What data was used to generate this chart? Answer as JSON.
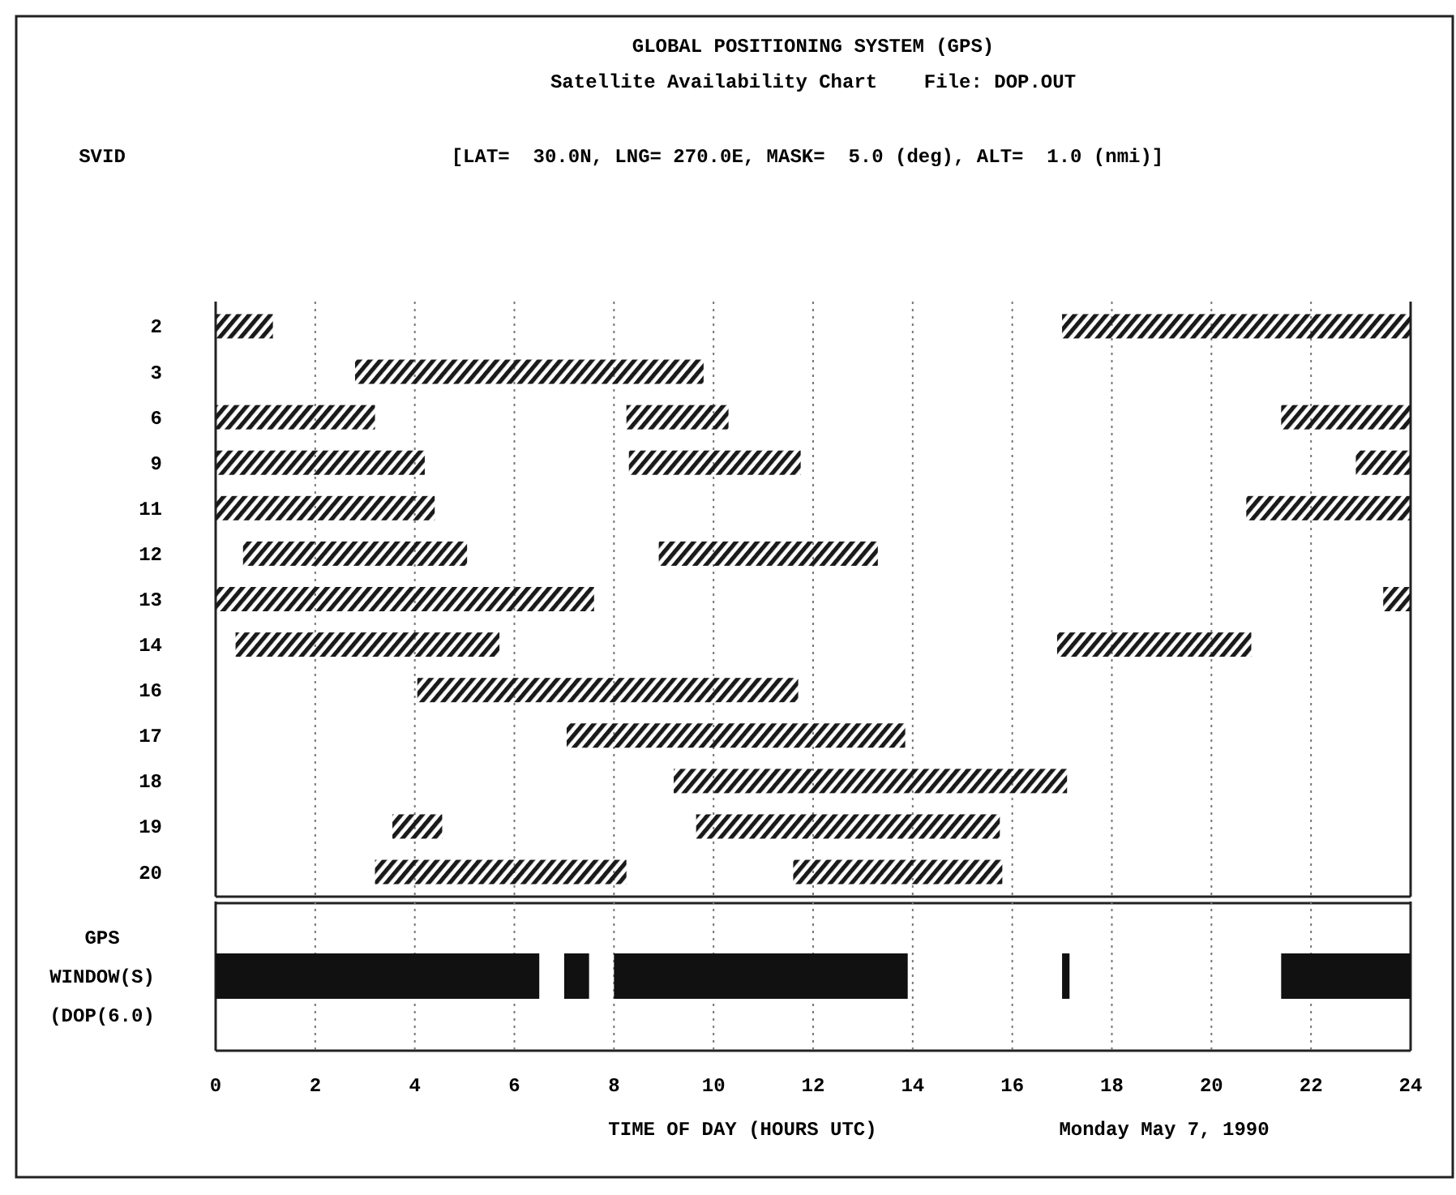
{
  "chart_data": [
    {
      "type": "bar",
      "orientation": "horizontal",
      "title": "GLOBAL POSITIONING SYSTEM (GPS)",
      "subtitle": "Satellite Availability Chart    File: DOP.OUT",
      "ylabel": "SVID",
      "annotations": [
        "[LAT=  30.0N, LNG= 270.0E, MASK=  5.0 (deg), ALT=  1.0 (nmi)]"
      ],
      "categories": [
        "2",
        "3",
        "6",
        "9",
        "11",
        "12",
        "13",
        "14",
        "16",
        "17",
        "18",
        "19",
        "20"
      ],
      "series": [
        {
          "color": "#1a1a1a",
          "base": [
            0,
            2.8,
            0,
            0,
            0,
            0.55,
            0,
            0.4,
            4.05,
            7.05,
            9.2,
            3.55,
            3.2
          ],
          "values": [
            1.15,
            7.0,
            3.2,
            4.2,
            4.4,
            4.5,
            7.6,
            5.3,
            7.65,
            6.8,
            7.9,
            1.0,
            5.05
          ]
        },
        {
          "color": "#1a1a1a",
          "base": [
            17.0,
            null,
            8.25,
            8.3,
            20.7,
            8.9,
            23.45,
            16.9,
            null,
            null,
            null,
            9.65,
            11.6
          ],
          "values": [
            7.0,
            null,
            2.05,
            3.45,
            3.3,
            4.4,
            0.55,
            3.9,
            null,
            null,
            null,
            6.1,
            4.2
          ]
        },
        {
          "color": "#1a1a1a",
          "base": [
            null,
            null,
            21.4,
            22.9,
            null,
            null,
            null,
            null,
            null,
            null,
            null,
            null,
            null
          ],
          "values": [
            null,
            null,
            2.6,
            1.1,
            null,
            null,
            null,
            null,
            null,
            null,
            null,
            null,
            null
          ]
        }
      ],
      "xlim": [
        0,
        24
      ],
      "xticks": [
        0,
        2,
        4,
        6,
        8,
        10,
        12,
        14,
        16,
        18,
        20,
        22,
        24
      ],
      "grid": "x",
      "tick_labels": "y"
    },
    {
      "type": "bar",
      "orientation": "horizontal",
      "xlabel": "TIME OF DAY (HOURS UTC)",
      "annotations": [
        "Monday May 7, 1990"
      ],
      "categories": [
        "GPS WINDOW(S) (DOP(6.0)"
      ],
      "series": [
        {
          "color": "#111111",
          "base": [
            0
          ],
          "values": [
            6.5
          ]
        },
        {
          "color": "#111111",
          "base": [
            7.0
          ],
          "values": [
            0.5
          ]
        },
        {
          "color": "#111111",
          "base": [
            8.0
          ],
          "values": [
            5.9
          ]
        },
        {
          "color": "#111111",
          "base": [
            17.0
          ],
          "values": [
            0.15
          ]
        },
        {
          "color": "#111111",
          "base": [
            21.4
          ],
          "values": [
            2.6
          ]
        }
      ],
      "xlim": [
        0,
        24
      ],
      "xticks": [
        0,
        2,
        4,
        6,
        8,
        10,
        12,
        14,
        16,
        18,
        20,
        22,
        24
      ],
      "grid": "x"
    }
  ]
}
